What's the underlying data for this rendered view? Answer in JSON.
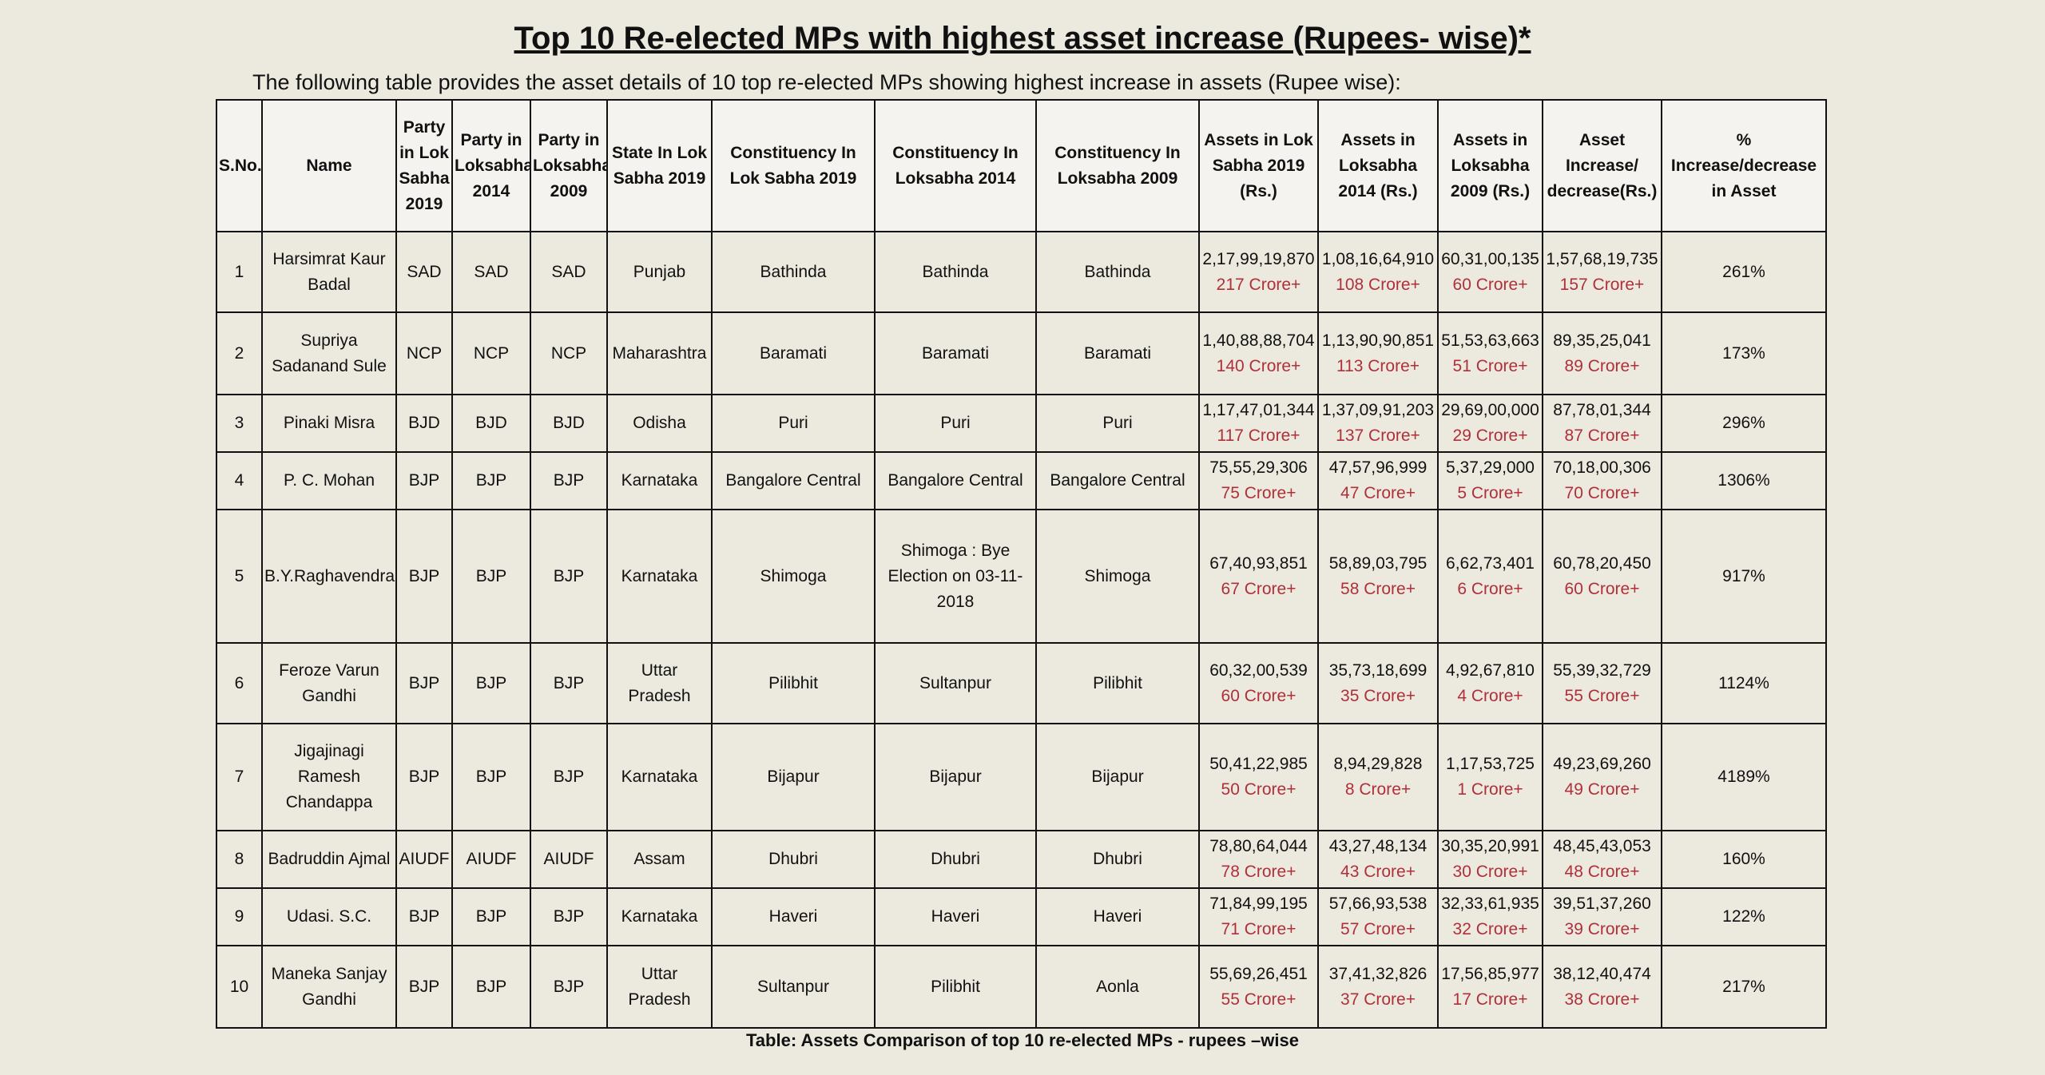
{
  "header": {
    "title": "Top 10 Re-elected MPs with highest asset increase (Rupees- wise)*",
    "intro": "The following table provides the asset details of 10 top re-elected MPs showing highest increase in assets (Rupee wise):"
  },
  "table": {
    "headers": [
      "S.No.",
      "Name",
      "Party in Lok Sabha 2019",
      "Party in Loksabha 2014",
      "Party in Loksabha 2009",
      "State In Lok Sabha 2019",
      "Constituency In Lok Sabha 2019",
      "Constituency In Loksabha 2014",
      "Constituency In Loksabha 2009",
      "Assets in Lok Sabha 2019 (Rs.)",
      "Assets in Loksabha 2014 (Rs.)",
      "Assets in Loksabha 2009 (Rs.)",
      "Asset Increase/ decrease(Rs.)",
      "% Increase/decrease in Asset"
    ],
    "rows": [
      [
        "1",
        "Harsimrat Kaur Badal",
        "SAD",
        "SAD",
        "SAD",
        "Punjab",
        "Bathinda",
        "Bathinda",
        "Bathinda",
        {
          "value": "2,17,99,19,870",
          "note": "217 Crore+"
        },
        {
          "value": "1,08,16,64,910",
          "note": "108 Crore+"
        },
        {
          "value": "60,31,00,135",
          "note": "60 Crore+"
        },
        {
          "value": "1,57,68,19,735",
          "note": "157 Crore+"
        },
        "261%"
      ],
      [
        "2",
        "Supriya Sadanand Sule",
        "NCP",
        "NCP",
        "NCP",
        "Maharashtra",
        "Baramati",
        "Baramati",
        "Baramati",
        {
          "value": "1,40,88,88,704",
          "note": "140 Crore+"
        },
        {
          "value": "1,13,90,90,851",
          "note": "113 Crore+"
        },
        {
          "value": "51,53,63,663",
          "note": "51 Crore+"
        },
        {
          "value": "89,35,25,041",
          "note": "89 Crore+"
        },
        "173%"
      ],
      [
        "3",
        "Pinaki Misra",
        "BJD",
        "BJD",
        "BJD",
        "Odisha",
        "Puri",
        "Puri",
        "Puri",
        {
          "value": "1,17,47,01,344",
          "note": "117 Crore+"
        },
        {
          "value": "1,37,09,91,203",
          "note": "137 Crore+"
        },
        {
          "value": "29,69,00,000",
          "note": "29 Crore+"
        },
        {
          "value": "87,78,01,344",
          "note": "87 Crore+"
        },
        "296%"
      ],
      [
        "4",
        "P. C. Mohan",
        "BJP",
        "BJP",
        "BJP",
        "Karnataka",
        "Bangalore Central",
        "Bangalore Central",
        "Bangalore Central",
        {
          "value": "75,55,29,306",
          "note": "75 Crore+"
        },
        {
          "value": "47,57,96,999",
          "note": "47 Crore+"
        },
        {
          "value": "5,37,29,000",
          "note": "5 Crore+"
        },
        {
          "value": "70,18,00,306",
          "note": "70 Crore+"
        },
        "1306%"
      ],
      [
        "5",
        "B.Y.Raghavendra",
        "BJP",
        "BJP",
        "BJP",
        "Karnataka",
        "Shimoga",
        "Shimoga : Bye Election on 03-11-2018",
        "Shimoga",
        {
          "value": "67,40,93,851",
          "note": "67 Crore+"
        },
        {
          "value": "58,89,03,795",
          "note": "58 Crore+"
        },
        {
          "value": "6,62,73,401",
          "note": "6 Crore+"
        },
        {
          "value": "60,78,20,450",
          "note": "60 Crore+"
        },
        "917%"
      ],
      [
        "6",
        "Feroze Varun Gandhi",
        "BJP",
        "BJP",
        "BJP",
        "Uttar Pradesh",
        "Pilibhit",
        "Sultanpur",
        "Pilibhit",
        {
          "value": "60,32,00,539",
          "note": "60 Crore+"
        },
        {
          "value": "35,73,18,699",
          "note": "35 Crore+"
        },
        {
          "value": "4,92,67,810",
          "note": "4 Crore+"
        },
        {
          "value": "55,39,32,729",
          "note": "55 Crore+"
        },
        "1124%"
      ],
      [
        "7",
        "Jigajinagi Ramesh Chandappa",
        "BJP",
        "BJP",
        "BJP",
        "Karnataka",
        "Bijapur",
        "Bijapur",
        "Bijapur",
        {
          "value": "50,41,22,985",
          "note": "50 Crore+"
        },
        {
          "value": "8,94,29,828",
          "note": "8 Crore+"
        },
        {
          "value": "1,17,53,725",
          "note": "1 Crore+"
        },
        {
          "value": "49,23,69,260",
          "note": "49 Crore+"
        },
        "4189%"
      ],
      [
        "8",
        "Badruddin Ajmal",
        "AIUDF",
        "AIUDF",
        "AIUDF",
        "Assam",
        "Dhubri",
        "Dhubri",
        "Dhubri",
        {
          "value": "78,80,64,044",
          "note": "78 Crore+"
        },
        {
          "value": "43,27,48,134",
          "note": "43 Crore+"
        },
        {
          "value": "30,35,20,991",
          "note": "30 Crore+"
        },
        {
          "value": "48,45,43,053",
          "note": "48 Crore+"
        },
        "160%"
      ],
      [
        "9",
        "Udasi. S.C.",
        "BJP",
        "BJP",
        "BJP",
        "Karnataka",
        "Haveri",
        "Haveri",
        "Haveri",
        {
          "value": "71,84,99,195",
          "note": "71 Crore+"
        },
        {
          "value": "57,66,93,538",
          "note": "57 Crore+"
        },
        {
          "value": "32,33,61,935",
          "note": "32 Crore+"
        },
        {
          "value": "39,51,37,260",
          "note": "39 Crore+"
        },
        "122%"
      ],
      [
        "10",
        "Maneka Sanjay Gandhi",
        "BJP",
        "BJP",
        "BJP",
        "Uttar Pradesh",
        "Sultanpur",
        "Pilibhit",
        "Aonla",
        {
          "value": "55,69,26,451",
          "note": "55 Crore+"
        },
        {
          "value": "37,41,32,826",
          "note": "37 Crore+"
        },
        {
          "value": "17,56,85,977",
          "note": "17 Crore+"
        },
        {
          "value": "38,12,40,474",
          "note": "38 Crore+"
        },
        "217%"
      ]
    ]
  },
  "caption": "Table: Assets Comparison of top 10 re-elected MPs - rupees –wise"
}
